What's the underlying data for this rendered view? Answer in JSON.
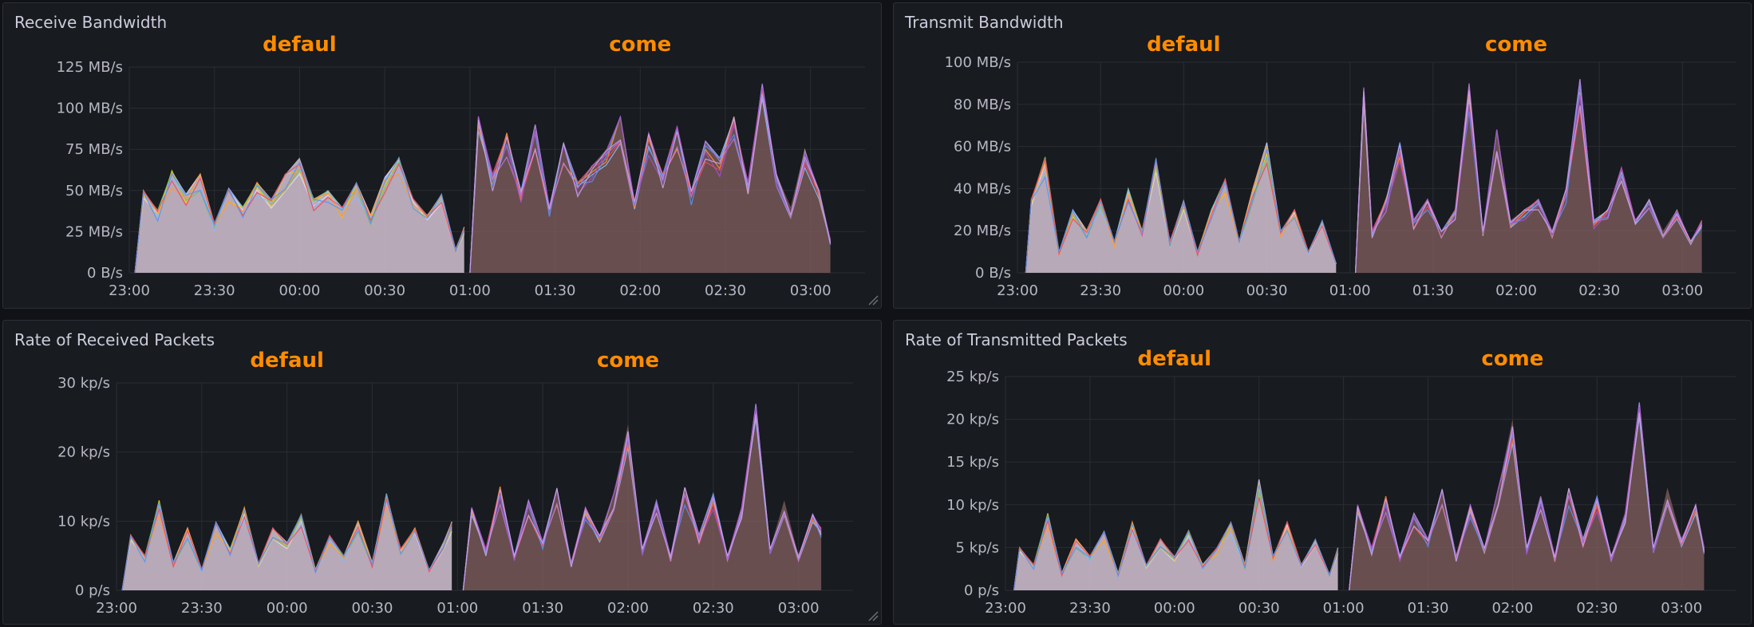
{
  "panels": [
    {
      "title": "Receive Bandwidth"
    },
    {
      "title": "Transmit Bandwidth"
    },
    {
      "title": "Rate of Received Packets"
    },
    {
      "title": "Rate of Transmitted Packets"
    }
  ],
  "chart_data": [
    {
      "type": "area",
      "title": "Receive Bandwidth",
      "x_ticks": [
        "23:00",
        "23:30",
        "00:00",
        "00:30",
        "01:00",
        "01:30",
        "02:00",
        "02:30",
        "03:00"
      ],
      "y_ticks": [
        "0 B/s",
        "25 MB/s",
        "50 MB/s",
        "75 MB/s",
        "100 MB/s",
        "125 MB/s"
      ],
      "ylim": [
        0,
        125
      ],
      "y_unit": "MB/s",
      "grid": true,
      "annotations": [
        {
          "text": "defaul",
          "x": "00:00"
        },
        {
          "text": "come",
          "x": "02:00"
        }
      ],
      "series": [
        {
          "x": [
            "23:02",
            "23:05",
            "23:10",
            "23:15",
            "23:20",
            "23:25",
            "23:30",
            "23:35",
            "23:40",
            "23:45",
            "23:50",
            "23:55",
            "00:00",
            "00:05",
            "00:10",
            "00:15",
            "00:20",
            "00:25",
            "00:30",
            "00:35",
            "00:40",
            "00:45",
            "00:50",
            "00:55",
            "00:58"
          ],
          "values": [
            0,
            50,
            38,
            62,
            48,
            60,
            30,
            52,
            40,
            55,
            45,
            60,
            70,
            45,
            50,
            40,
            55,
            35,
            58,
            70,
            45,
            35,
            48,
            15,
            28
          ]
        },
        {
          "x": [
            "01:00",
            "01:03",
            "01:08",
            "01:13",
            "01:18",
            "01:23",
            "01:28",
            "01:33",
            "01:38",
            "01:43",
            "01:48",
            "01:53",
            "01:58",
            "02:03",
            "02:08",
            "02:13",
            "02:18",
            "02:23",
            "02:28",
            "02:33",
            "02:38",
            "02:43",
            "02:48",
            "02:53",
            "02:58",
            "03:03",
            "03:07"
          ],
          "values": [
            0,
            95,
            60,
            85,
            50,
            90,
            40,
            80,
            55,
            65,
            75,
            95,
            45,
            85,
            60,
            90,
            50,
            80,
            70,
            95,
            55,
            115,
            60,
            40,
            75,
            50,
            20
          ]
        }
      ]
    },
    {
      "type": "area",
      "title": "Transmit Bandwidth",
      "x_ticks": [
        "23:00",
        "23:30",
        "00:00",
        "00:30",
        "01:00",
        "01:30",
        "02:00",
        "02:30",
        "03:00"
      ],
      "y_ticks": [
        "0 B/s",
        "20 MB/s",
        "40 MB/s",
        "60 MB/s",
        "80 MB/s",
        "100 MB/s"
      ],
      "ylim": [
        0,
        100
      ],
      "y_unit": "MB/s",
      "grid": true,
      "annotations": [
        {
          "text": "defaul",
          "x": "00:00"
        },
        {
          "text": "come",
          "x": "02:00"
        }
      ],
      "series": [
        {
          "x": [
            "23:03",
            "23:05",
            "23:10",
            "23:15",
            "23:20",
            "23:25",
            "23:30",
            "23:35",
            "23:40",
            "23:45",
            "23:50",
            "23:55",
            "00:00",
            "00:05",
            "00:10",
            "00:15",
            "00:20",
            "00:25",
            "00:30",
            "00:35",
            "00:40",
            "00:45",
            "00:50",
            "00:55"
          ],
          "values": [
            0,
            35,
            55,
            10,
            30,
            20,
            35,
            15,
            40,
            20,
            55,
            15,
            35,
            10,
            30,
            45,
            15,
            40,
            62,
            20,
            30,
            10,
            25,
            5
          ]
        },
        {
          "x": [
            "01:02",
            "01:05",
            "01:08",
            "01:13",
            "01:18",
            "01:23",
            "01:28",
            "01:33",
            "01:38",
            "01:43",
            "01:48",
            "01:53",
            "01:58",
            "02:03",
            "02:08",
            "02:13",
            "02:18",
            "02:23",
            "02:28",
            "02:33",
            "02:38",
            "02:43",
            "02:48",
            "02:53",
            "02:58",
            "03:03",
            "03:07"
          ],
          "values": [
            0,
            88,
            20,
            35,
            62,
            25,
            35,
            20,
            30,
            90,
            20,
            68,
            25,
            30,
            35,
            20,
            40,
            92,
            25,
            30,
            50,
            25,
            35,
            20,
            30,
            15,
            25
          ]
        }
      ]
    },
    {
      "type": "area",
      "title": "Rate of Received Packets",
      "x_ticks": [
        "23:00",
        "23:30",
        "00:00",
        "00:30",
        "01:00",
        "01:30",
        "02:00",
        "02:30",
        "03:00"
      ],
      "y_ticks": [
        "0 p/s",
        "10 kp/s",
        "20 kp/s",
        "30 kp/s"
      ],
      "ylim": [
        0,
        30
      ],
      "y_unit": "kp/s",
      "grid": true,
      "annotations": [
        {
          "text": "defaul",
          "x": "00:00"
        },
        {
          "text": "come",
          "x": "02:00"
        }
      ],
      "series": [
        {
          "x": [
            "23:02",
            "23:05",
            "23:10",
            "23:15",
            "23:20",
            "23:25",
            "23:30",
            "23:35",
            "23:40",
            "23:45",
            "23:50",
            "23:55",
            "00:00",
            "00:05",
            "00:10",
            "00:15",
            "00:20",
            "00:25",
            "00:30",
            "00:35",
            "00:40",
            "00:45",
            "00:50",
            "00:55",
            "00:58"
          ],
          "values": [
            0,
            8,
            5,
            13,
            4,
            9,
            3,
            10,
            6,
            12,
            4,
            9,
            7,
            11,
            3,
            8,
            5,
            10,
            4,
            14,
            6,
            9,
            3,
            7,
            10
          ]
        },
        {
          "x": [
            "01:02",
            "01:05",
            "01:10",
            "01:15",
            "01:20",
            "01:25",
            "01:30",
            "01:35",
            "01:40",
            "01:45",
            "01:50",
            "01:55",
            "02:00",
            "02:05",
            "02:10",
            "02:15",
            "02:20",
            "02:25",
            "02:30",
            "02:35",
            "02:40",
            "02:45",
            "02:50",
            "02:55",
            "03:00",
            "03:05",
            "03:08"
          ],
          "values": [
            0,
            12,
            6,
            15,
            5,
            13,
            7,
            15,
            4,
            12,
            8,
            14,
            24,
            6,
            13,
            5,
            15,
            8,
            14,
            5,
            12,
            27,
            6,
            13,
            5,
            11,
            9
          ]
        }
      ]
    },
    {
      "type": "area",
      "title": "Rate of Transmitted Packets",
      "x_ticks": [
        "23:00",
        "23:30",
        "00:00",
        "00:30",
        "01:00",
        "01:30",
        "02:00",
        "02:30",
        "03:00"
      ],
      "y_ticks": [
        "0 p/s",
        "5 kp/s",
        "10 kp/s",
        "15 kp/s",
        "20 kp/s",
        "25 kp/s"
      ],
      "ylim": [
        0,
        25
      ],
      "y_unit": "kp/s",
      "grid": true,
      "annotations": [
        {
          "text": "defaul",
          "x": "00:00"
        },
        {
          "text": "come",
          "x": "02:00"
        }
      ],
      "series": [
        {
          "x": [
            "23:03",
            "23:05",
            "23:10",
            "23:15",
            "23:20",
            "23:25",
            "23:30",
            "23:35",
            "23:40",
            "23:45",
            "23:50",
            "23:55",
            "00:00",
            "00:05",
            "00:10",
            "00:15",
            "00:20",
            "00:25",
            "00:30",
            "00:35",
            "00:40",
            "00:45",
            "00:50",
            "00:55",
            "00:58"
          ],
          "values": [
            0,
            5,
            3,
            9,
            2,
            6,
            4,
            7,
            2,
            8,
            3,
            6,
            4,
            7,
            3,
            5,
            8,
            3,
            13,
            4,
            8,
            3,
            6,
            2,
            5
          ]
        },
        {
          "x": [
            "01:02",
            "01:05",
            "01:10",
            "01:15",
            "01:20",
            "01:25",
            "01:30",
            "01:35",
            "01:40",
            "01:45",
            "01:50",
            "01:55",
            "02:00",
            "02:05",
            "02:10",
            "02:15",
            "02:20",
            "02:25",
            "02:30",
            "02:35",
            "02:40",
            "02:45",
            "02:50",
            "02:55",
            "03:00",
            "03:05",
            "03:08"
          ],
          "values": [
            0,
            10,
            5,
            11,
            4,
            9,
            6,
            12,
            4,
            10,
            5,
            12,
            20,
            5,
            11,
            4,
            12,
            6,
            11,
            4,
            9,
            22,
            5,
            12,
            6,
            10,
            5
          ]
        }
      ]
    }
  ]
}
